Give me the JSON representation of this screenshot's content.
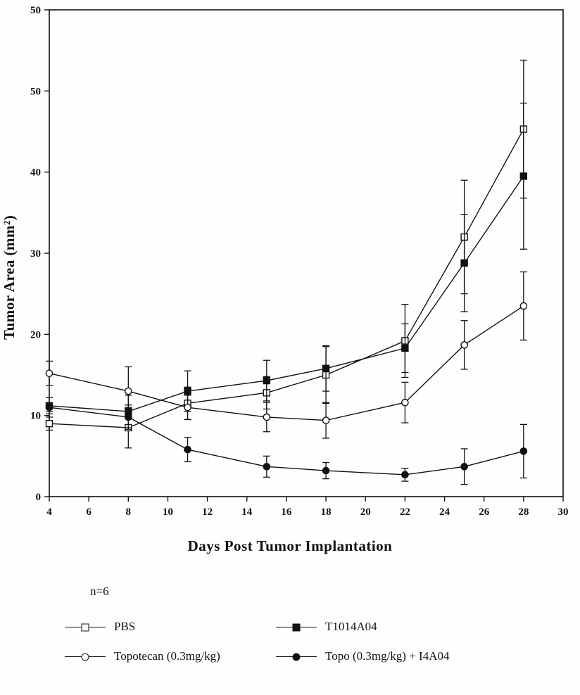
{
  "figure": {
    "xlabel": "Days Post Tumor Implantation",
    "ylabel": "Tumor Area (mm²)",
    "sample_size_note": "n=6"
  },
  "chart_data": {
    "type": "line",
    "title": "",
    "xlabel": "Days Post Tumor Implantation",
    "ylabel": "Tumor Area (mm²)",
    "xlim": [
      4,
      30
    ],
    "ylim": [
      0,
      60
    ],
    "x_ticks": [
      4,
      6,
      8,
      10,
      12,
      14,
      16,
      18,
      20,
      22,
      24,
      26,
      28,
      30
    ],
    "y_ticks": [
      0,
      10,
      20,
      30,
      40,
      50,
      60
    ],
    "y_tick_labels": [
      "0",
      "10",
      "20",
      "30",
      "40",
      "50",
      "50"
    ],
    "grid": false,
    "legend_position": "bottom",
    "error_bars": true,
    "annotation": "n=6",
    "x": [
      4,
      8,
      11,
      15,
      18,
      22,
      25,
      28
    ],
    "series": [
      {
        "name": "PBS",
        "marker": "open-square",
        "values": [
          9.0,
          8.5,
          11.5,
          12.8,
          15.0,
          19.2,
          32.0,
          45.3
        ],
        "errors": [
          0.8,
          2.5,
          2.0,
          2.0,
          3.5,
          4.5,
          7.0,
          8.5
        ]
      },
      {
        "name": "T1014A04",
        "marker": "filled-square",
        "values": [
          11.2,
          10.5,
          13.0,
          14.3,
          15.8,
          18.3,
          28.8,
          39.5
        ],
        "errors": [
          1.0,
          2.0,
          2.5,
          2.5,
          2.8,
          3.0,
          6.0,
          9.0
        ]
      },
      {
        "name": "Topotecan (0.3mg/kg)",
        "marker": "open-circle",
        "values": [
          15.2,
          13.0,
          11.0,
          9.8,
          9.4,
          11.6,
          18.7,
          23.5
        ],
        "errors": [
          1.5,
          3.0,
          1.5,
          1.8,
          2.2,
          2.5,
          3.0,
          4.2
        ]
      },
      {
        "name": "Topo (0.3mg/kg) + I4A04",
        "marker": "filled-circle",
        "values": [
          11.0,
          9.8,
          5.8,
          3.7,
          3.2,
          2.7,
          3.7,
          5.6
        ],
        "errors": [
          0.5,
          1.5,
          1.5,
          1.3,
          1.0,
          0.8,
          2.2,
          3.3
        ]
      }
    ]
  }
}
